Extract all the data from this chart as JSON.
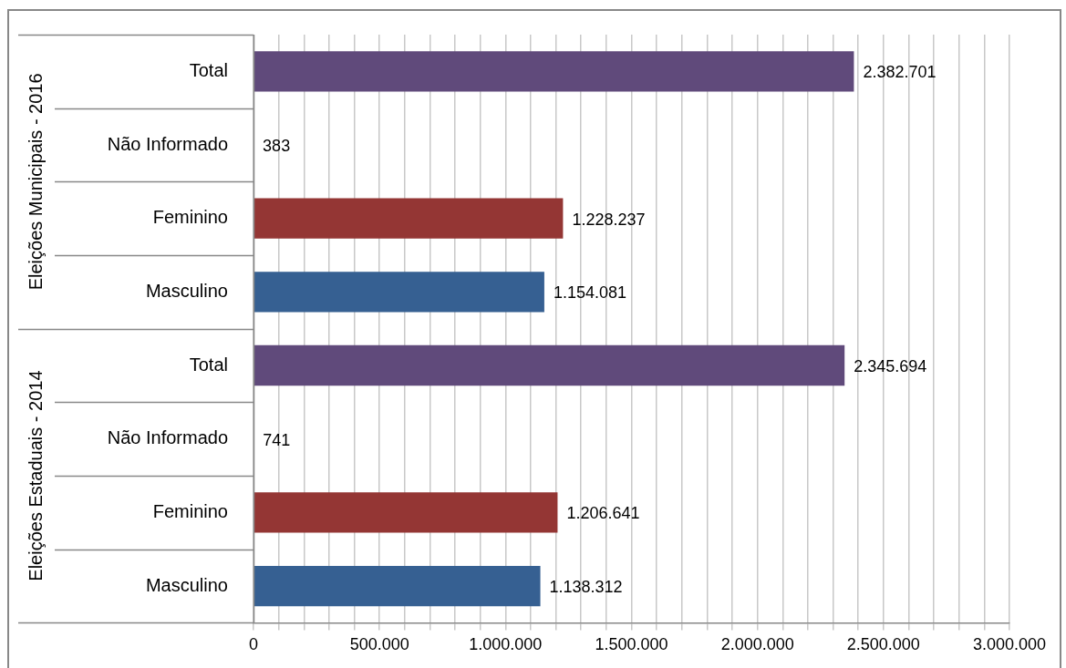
{
  "chart_data": {
    "type": "bar",
    "orientation": "horizontal",
    "categories": [
      "Total",
      "Não Informado",
      "Feminino",
      "Masculino",
      "Total",
      "Não Informado",
      "Feminino",
      "Masculino"
    ],
    "values": [
      2382701,
      383,
      1228237,
      1154081,
      2345694,
      741,
      1206641,
      1138312
    ],
    "colors": [
      "#604a7b",
      "#ffffff",
      "#943634",
      "#366092",
      "#604a7b",
      "#ffffff",
      "#943634",
      "#366092"
    ],
    "value_labels": [
      "2.382.701",
      "383",
      "1.228.237",
      "1.154.081",
      "2.345.694",
      "741",
      "1.206.641",
      "1.138.312"
    ],
    "annotations": [
      "Eleições Municipais - 2016",
      "Eleições Estaduais - 2014"
    ],
    "xlim": [
      0,
      3000000
    ],
    "xticks": [
      {
        "value": 0,
        "label": "0"
      },
      {
        "value": 100000,
        "label": null
      },
      {
        "value": 200000,
        "label": null
      },
      {
        "value": 300000,
        "label": null
      },
      {
        "value": 400000,
        "label": null
      },
      {
        "value": 500000,
        "label": "500.000"
      },
      {
        "value": 600000,
        "label": null
      },
      {
        "value": 700000,
        "label": null
      },
      {
        "value": 800000,
        "label": null
      },
      {
        "value": 900000,
        "label": null
      },
      {
        "value": 1000000,
        "label": "1.000.000"
      },
      {
        "value": 1100000,
        "label": null
      },
      {
        "value": 1200000,
        "label": null
      },
      {
        "value": 1300000,
        "label": null
      },
      {
        "value": 1400000,
        "label": null
      },
      {
        "value": 1500000,
        "label": "1.500.000"
      },
      {
        "value": 1600000,
        "label": null
      },
      {
        "value": 1700000,
        "label": null
      },
      {
        "value": 1800000,
        "label": null
      },
      {
        "value": 1900000,
        "label": null
      },
      {
        "value": 2000000,
        "label": "2.000.000"
      },
      {
        "value": 2100000,
        "label": null
      },
      {
        "value": 2200000,
        "label": null
      },
      {
        "value": 2300000,
        "label": null
      },
      {
        "value": 2400000,
        "label": null
      },
      {
        "value": 2500000,
        "label": "2.500.000"
      },
      {
        "value": 2600000,
        "label": null
      },
      {
        "value": 2700000,
        "label": null
      },
      {
        "value": 2800000,
        "label": null
      },
      {
        "value": 2900000,
        "label": null
      },
      {
        "value": 3000000,
        "label": "3.000.000"
      }
    ],
    "grid": "x",
    "legend": false
  }
}
